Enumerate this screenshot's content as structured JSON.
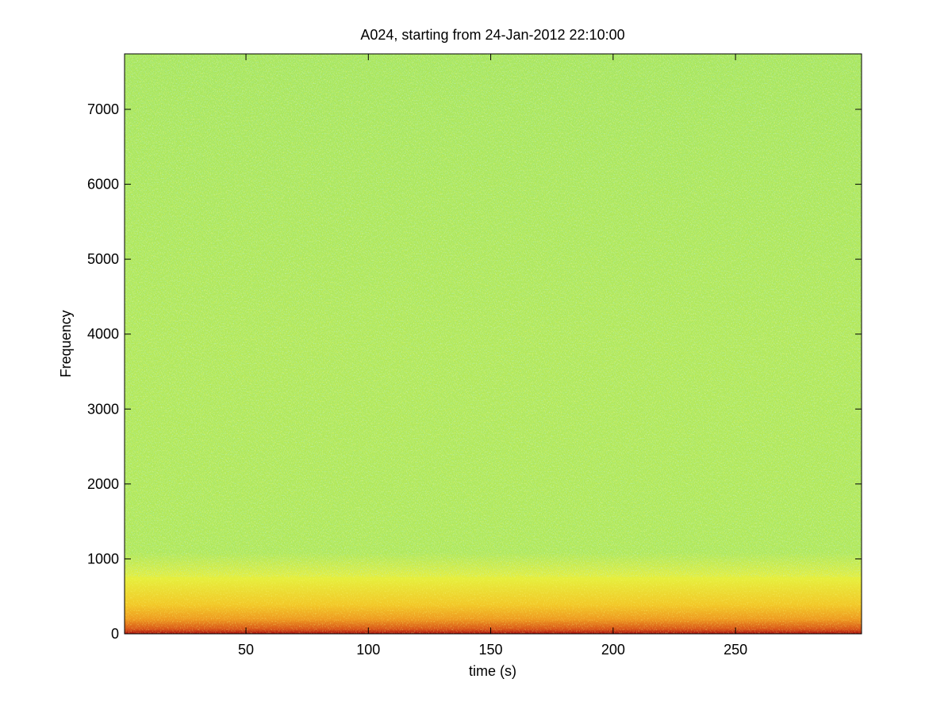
{
  "chart_data": {
    "type": "spectrogram",
    "title": "A024, starting from 24-Jan-2012 22:10:00",
    "xlabel": "time (s)",
    "ylabel": "Frequency",
    "xlim": [
      0.4,
      301.5
    ],
    "ylim": [
      0,
      7740
    ],
    "xticks": [
      50,
      100,
      150,
      200,
      250
    ],
    "yticks": [
      0,
      1000,
      2000,
      3000,
      4000,
      5000,
      6000,
      7000
    ]
  }
}
